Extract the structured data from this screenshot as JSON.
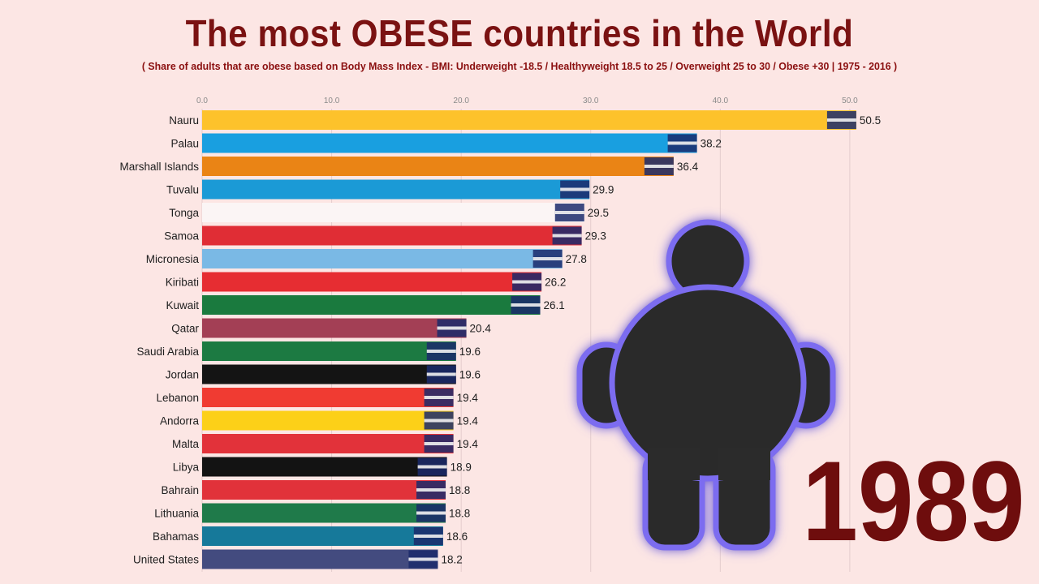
{
  "title": "The most OBESE countries in the World",
  "subtitle": "( Share of adults that are obese based on Body Mass Index - BMI: Underweight -18.5 / Healthyweight 18.5 to 25 / Overweight 25 to 30 / Obese +30 | 1975 - 2016 )",
  "year": "1989",
  "colors": {
    "background": "#fce6e4",
    "title": "#7a1212",
    "year": "#6e0d0d"
  },
  "icons": [
    "obese-person-icon",
    "country-flag-icon"
  ],
  "chart_data": {
    "type": "bar",
    "orientation": "horizontal",
    "xlim": [
      0,
      52.7
    ],
    "xticks": [
      "0.0",
      "10.0",
      "20.0",
      "30.0",
      "40.0",
      "50.0"
    ],
    "tick_values": [
      0,
      10,
      20,
      30,
      40,
      50
    ],
    "grid": true,
    "categories": [
      "Nauru",
      "Palau",
      "Marshall Islands",
      "Tuvalu",
      "Tonga",
      "Samoa",
      "Micronesia",
      "Kiribati",
      "Kuwait",
      "Qatar",
      "Saudi Arabia",
      "Jordan",
      "Lebanon",
      "Andorra",
      "Malta",
      "Libya",
      "Bahrain",
      "Lithuania",
      "Bahamas",
      "United States"
    ],
    "values": [
      50.5,
      38.2,
      36.4,
      29.9,
      29.5,
      29.3,
      27.8,
      26.2,
      26.1,
      20.4,
      19.6,
      19.6,
      19.4,
      19.4,
      19.4,
      18.9,
      18.8,
      18.8,
      18.6,
      18.2
    ],
    "value_labels": [
      "50.5",
      "38.2",
      "36.4",
      "29.9",
      "29.5",
      "29.3",
      "27.8",
      "26.2",
      "26.1",
      "20.4",
      "19.6",
      "19.6",
      "19.4",
      "19.4",
      "19.4",
      "18.9",
      "18.8",
      "18.8",
      "18.6",
      "18.2"
    ],
    "colors": [
      "#fdc22b",
      "#199fe0",
      "#ea8415",
      "#1b9ad6",
      "#fbf5f5",
      "#e02d35",
      "#7ab9e5",
      "#e62d32",
      "#1a7a3e",
      "#a33f55",
      "#1c7a42",
      "#141414",
      "#f03b32",
      "#fcd018",
      "#e2323a",
      "#131313",
      "#e1323a",
      "#1f7a4a",
      "#16799a",
      "#434b7f"
    ]
  }
}
